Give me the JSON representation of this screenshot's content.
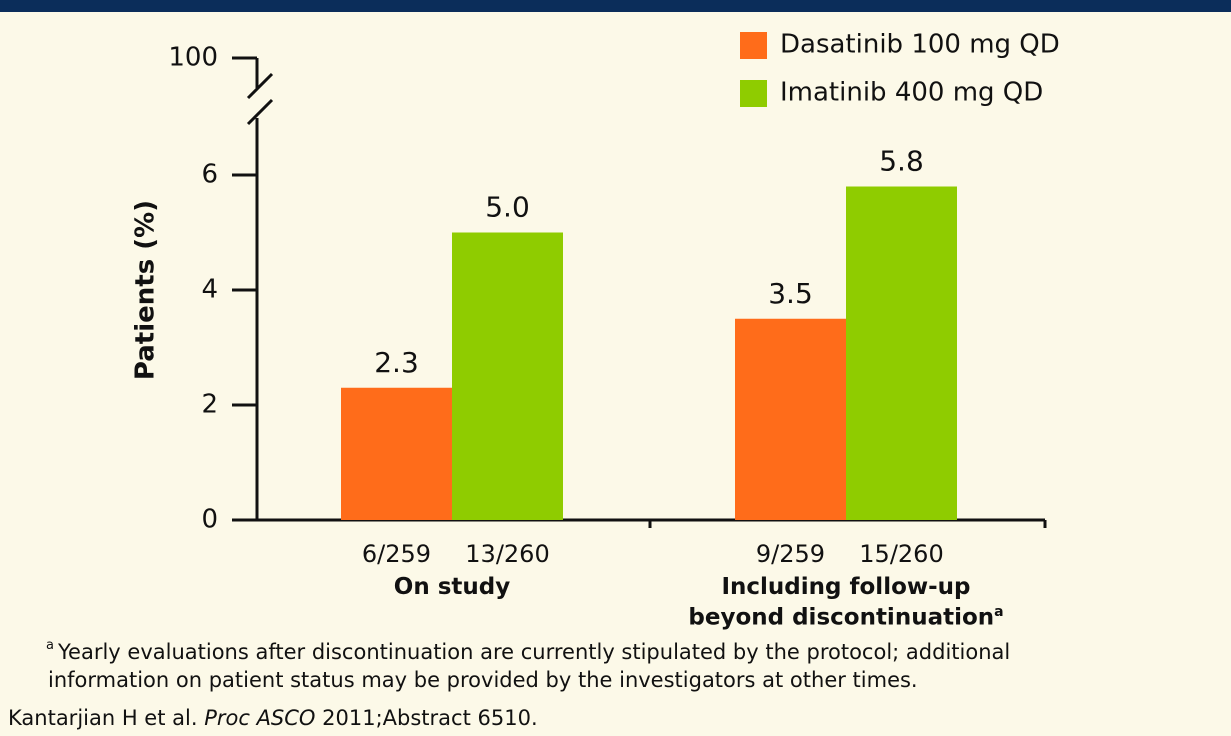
{
  "chart_data": {
    "type": "bar",
    "y_label": "Patients (%)",
    "categories": [
      "On study",
      "Including follow-up\nbeyond discontinuation"
    ],
    "category_marks": [
      null,
      "a"
    ],
    "series": [
      {
        "name": "Dasatinib 100 mg QD",
        "color": "#ff6c1a",
        "values": [
          2.3,
          3.5
        ],
        "value_labels": [
          "2.3",
          "3.5"
        ],
        "counts": [
          "6/259",
          "9/259"
        ]
      },
      {
        "name": "Imatinib 400 mg QD",
        "color": "#8fcc00",
        "values": [
          5.0,
          5.8
        ],
        "value_labels": [
          "5.0",
          "5.8"
        ],
        "counts": [
          "13/260",
          "15/260"
        ]
      }
    ],
    "ylim": [
      0,
      6
    ],
    "yticks": [
      0,
      2,
      4,
      6,
      100
    ],
    "axis_break": true
  },
  "footnote": {
    "mark": "a",
    "lines": [
      "Yearly evaluations after discontinuation are currently stipulated by the protocol; additional",
      "information on patient status may be provided by the investigators at other times."
    ]
  },
  "citation": {
    "authors": "Kantarjian H et al.",
    "journal": "Proc ASCO",
    "details": "2011;Abstract 6510."
  }
}
